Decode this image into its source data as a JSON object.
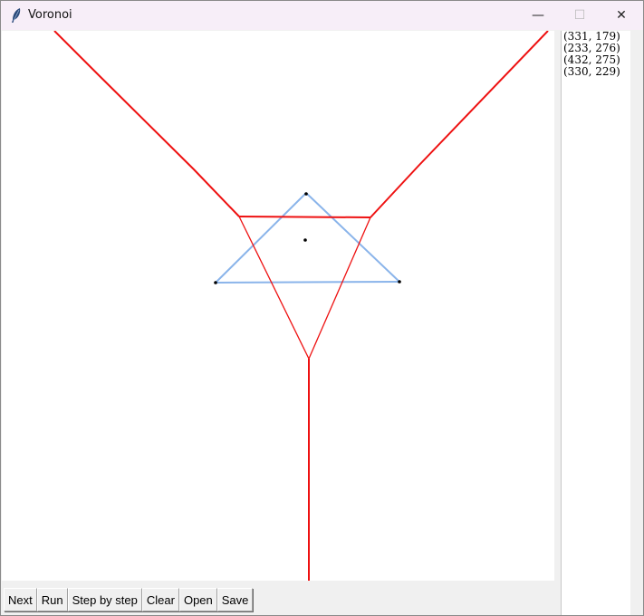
{
  "window": {
    "title": "Voronoi",
    "minimize_glyph": "—",
    "maximize_glyph": "☐",
    "close_glyph": "✕"
  },
  "points_list": [
    "(331, 179)",
    "(233, 276)",
    "(432, 275)",
    "(330, 229)"
  ],
  "buttons": {
    "next": "Next",
    "run": "Run",
    "step": "Step by step",
    "clear": "Clear",
    "open": "Open",
    "save": "Save"
  },
  "colors": {
    "voronoi_edge": "#ee1111",
    "triangulation_edge": "#8ab4ea",
    "site": "#000000"
  },
  "icons": {
    "app": "feather-icon"
  }
}
